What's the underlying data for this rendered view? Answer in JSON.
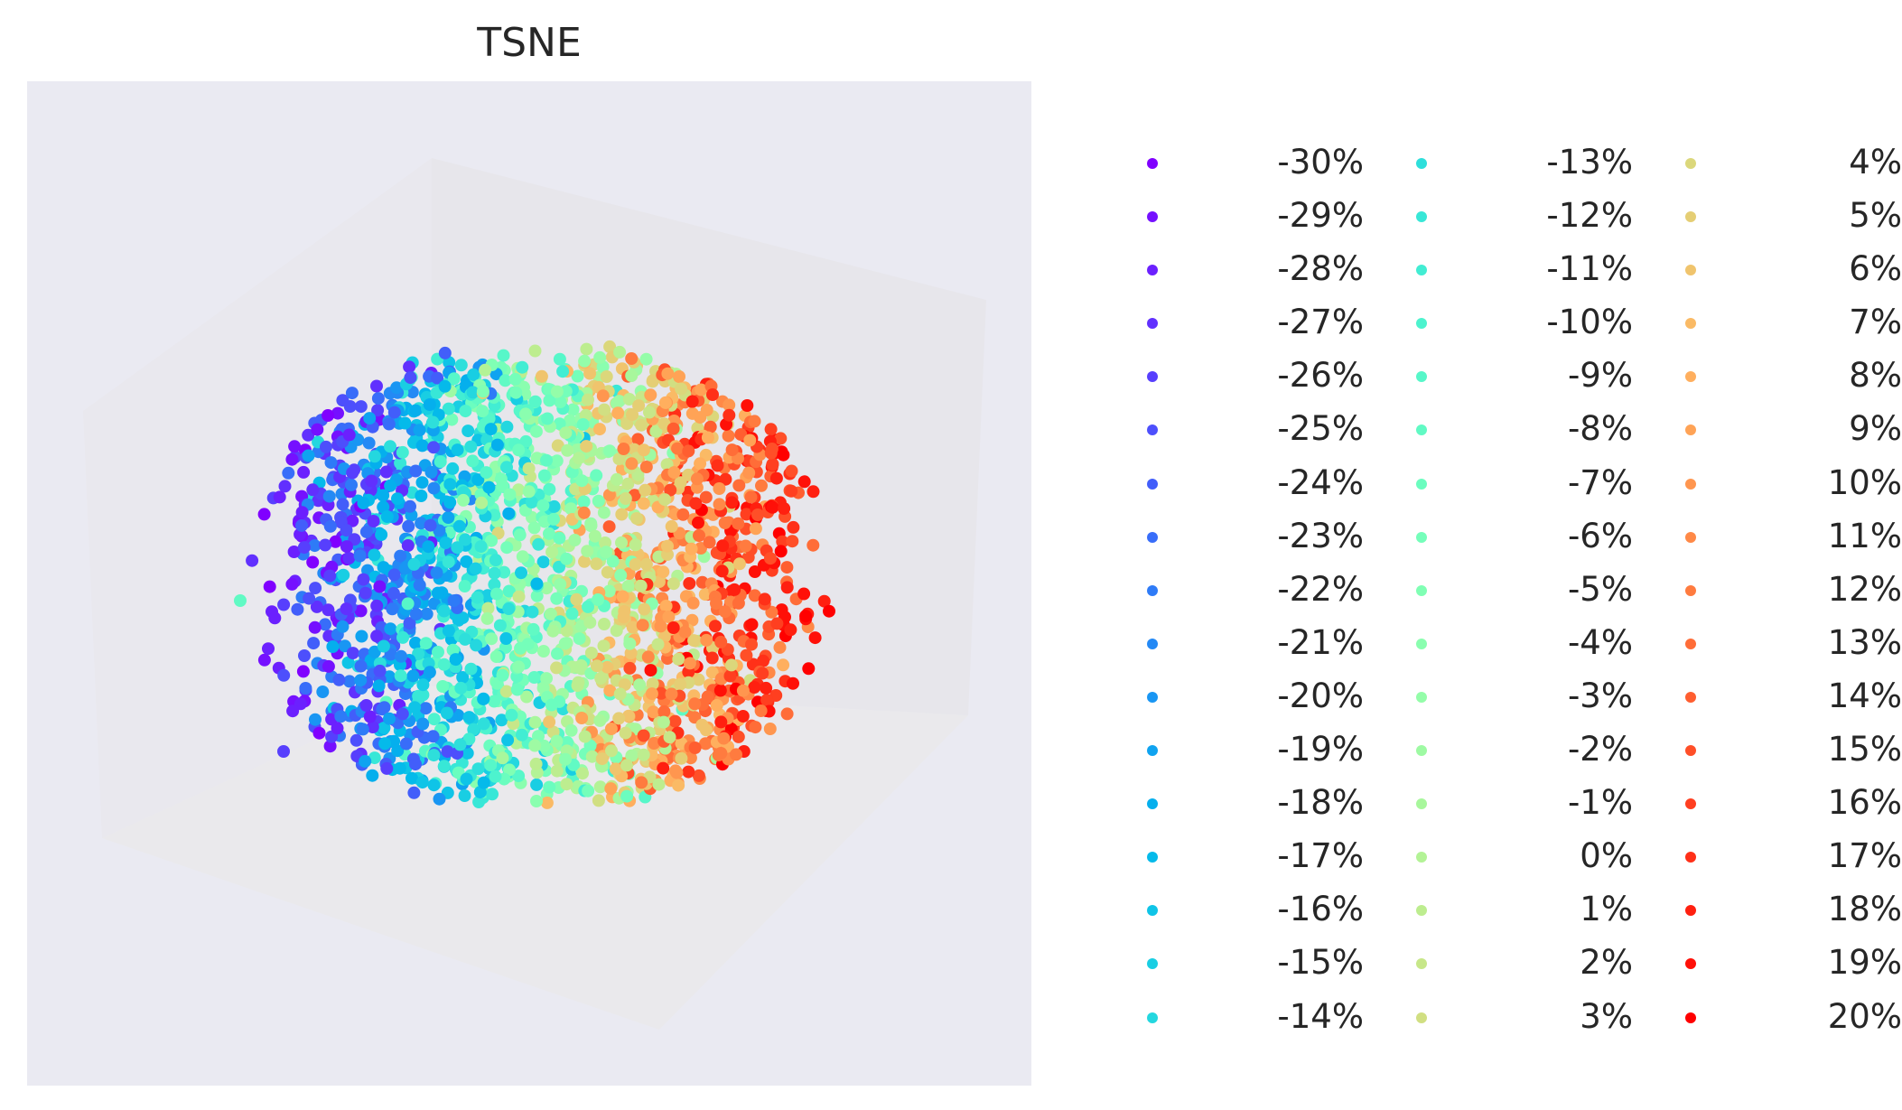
{
  "chart_data": {
    "type": "scatter",
    "title": "TSNE",
    "projection": "3d",
    "axes_visible": false,
    "background_color": "#eaeaf2",
    "pane_color": "#e8e7ec",
    "legend": {
      "placement": "right",
      "columns": 3,
      "entries": [
        "-30%",
        "-29%",
        "-28%",
        "-27%",
        "-26%",
        "-25%",
        "-24%",
        "-23%",
        "-22%",
        "-21%",
        "-20%",
        "-19%",
        "-18%",
        "-17%",
        "-16%",
        "-15%",
        "-14%",
        "-13%",
        "-12%",
        "-11%",
        "-10%",
        "-9%",
        "-8%",
        "-7%",
        "-6%",
        "-5%",
        "-4%",
        "-3%",
        "-2%",
        "-1%",
        "0%",
        "1%",
        "2%",
        "3%",
        "4%",
        "5%",
        "6%",
        "7%",
        "8%",
        "9%",
        "10%",
        "11%",
        "12%",
        "13%",
        "14%",
        "15%",
        "16%",
        "17%",
        "18%",
        "19%",
        "20%"
      ]
    },
    "colormap": "rainbow",
    "class_range": [
      -30,
      20
    ]
  }
}
